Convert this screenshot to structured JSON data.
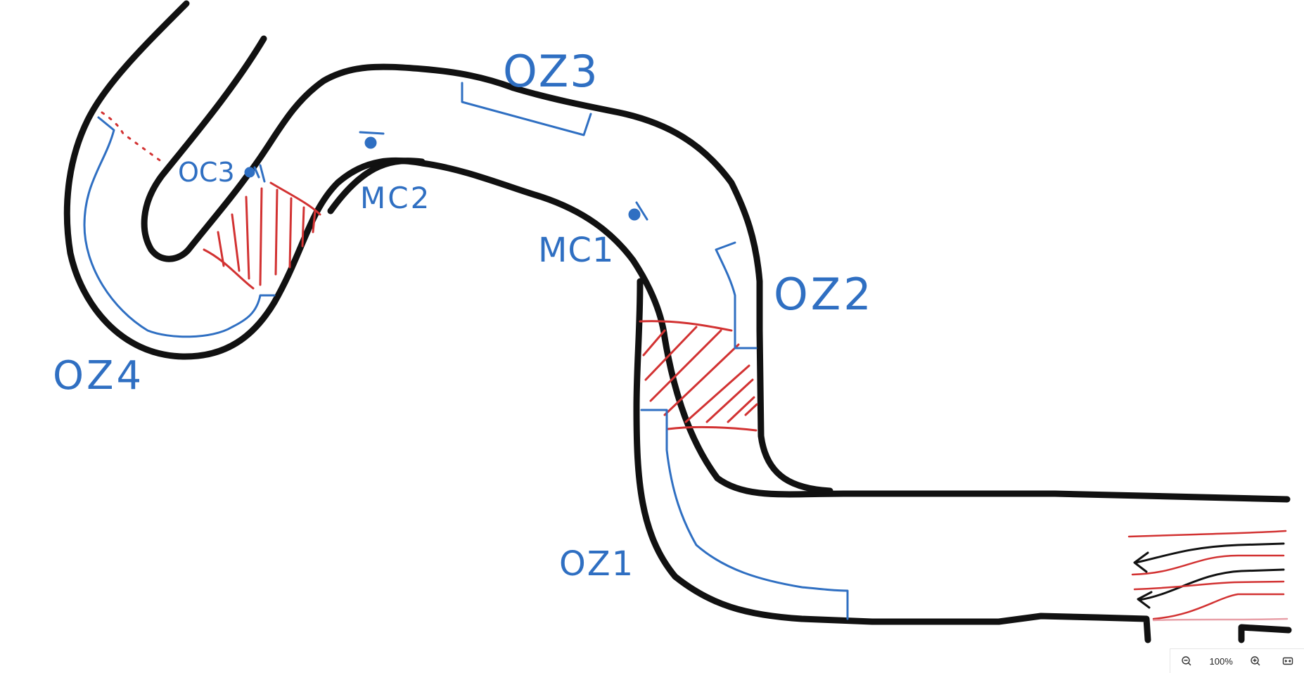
{
  "labels": {
    "oz1": "OZ1",
    "oz2": "OZ2",
    "oz3": "OZ3",
    "oz4": "OZ4",
    "oc3": "OC3",
    "mc1": "MC1",
    "mc2": "MC2"
  },
  "colors": {
    "wall": "#111111",
    "zone": "#2f6fc2",
    "hatch": "#d23232",
    "flow_light": "#e8a0a8"
  },
  "zoom": {
    "level": "100%",
    "zoom_out_icon": "zoom-out-icon",
    "zoom_in_icon": "zoom-in-icon",
    "fit_icon": "fit-width-icon"
  }
}
